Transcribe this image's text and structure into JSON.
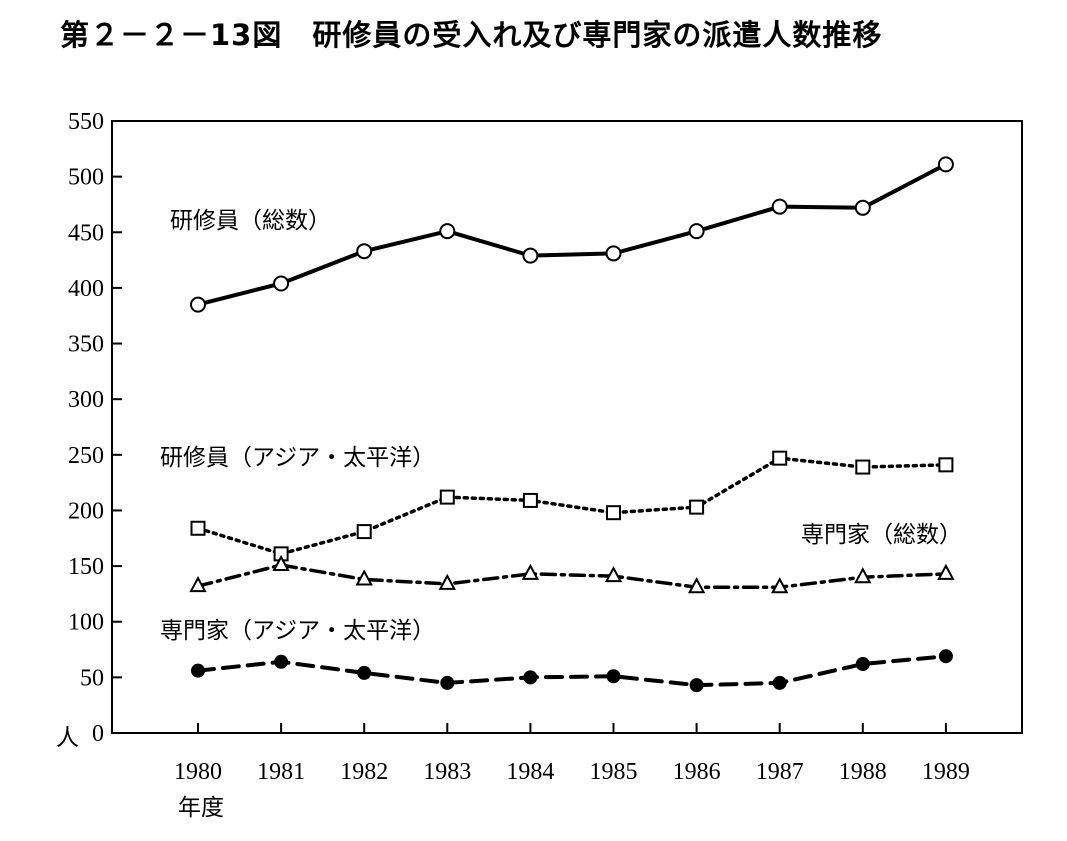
{
  "chart_data": {
    "type": "line",
    "title": "第２－２－13図　研修員の受入れ及び専門家の派遣人数推移",
    "ylabel": "人",
    "xlabel": "年度",
    "ylim": [
      0,
      550
    ],
    "yticks": [
      0,
      50,
      100,
      150,
      200,
      250,
      300,
      350,
      400,
      450,
      500,
      550
    ],
    "x": [
      1980,
      1981,
      1982,
      1983,
      1984,
      1985,
      1986,
      1987,
      1988,
      1989
    ],
    "grid": false,
    "series": [
      {
        "name": "研修員（総数）",
        "marker": "open-circle",
        "line": "solid",
        "values": [
          385,
          404,
          433,
          451,
          429,
          431,
          451,
          473,
          472,
          511
        ]
      },
      {
        "name": "研修員（アジア・太平洋）",
        "marker": "open-square",
        "line": "dotted",
        "values": [
          184,
          161,
          181,
          212,
          209,
          198,
          203,
          247,
          239,
          241
        ]
      },
      {
        "name": "専門家（総数）",
        "marker": "open-triangle",
        "line": "dash-dot",
        "values": [
          132,
          151,
          138,
          134,
          143,
          141,
          131,
          131,
          140,
          143
        ]
      },
      {
        "name": "専門家（アジア・太平洋）",
        "marker": "filled-circle",
        "line": "dashed",
        "values": [
          56,
          64,
          54,
          45,
          50,
          51,
          43,
          45,
          62,
          69
        ]
      }
    ]
  }
}
